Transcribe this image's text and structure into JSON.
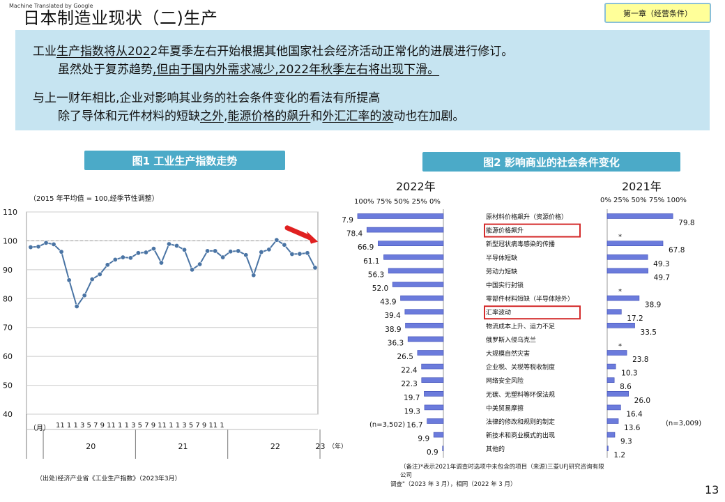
{
  "watermark": "Machine Translated by Google",
  "page_title": "日本制造业现状（二)生产",
  "chapter_label": "第一章（经营条件）",
  "summary": {
    "line1_a": "工业",
    "line1_b": "生产指数将从202",
    "line1_c": "2年夏季左右开始根据其他国家社会经济活动正常化的进展进行修订。",
    "line2_a": "虽然处于复苏趋势",
    "line2_b": ",但由于国内外需求减少,2022年秋季左右将出现下滑。",
    "line3": "与上一财年相比,企业对影响其业务的社会条件变化的看法有所提高",
    "line4_a": "除了导体和元件材料的短缺",
    "line4_b": "之外",
    "line4_c": ",",
    "line4_d": "能源价格的飙升",
    "line4_e": "和",
    "line4_f": "外汇汇率的波",
    "line4_g": "动也在加剧。"
  },
  "fig1": {
    "header": "图1 工业生产指数走势",
    "unit_note": "（2015 年平均值 = 100,经季节性调整）",
    "month_label": "（月）",
    "month_ticks": "11 1 1 3 5 7 9 11 1 1 3 5 7 9 11 1 1 3 5 7 9 11 1",
    "year_unit": "（年）",
    "source": "（出处)经济产业省《工业生产指数》（2023年3月）"
  },
  "fig2": {
    "header": "图2 影响商业的社会条件变化",
    "left_year": "2022年",
    "right_year": "2021年",
    "left_axis": "100% 75% 50% 25% 0%",
    "right_axis": "0% 25% 50% 75% 100%",
    "left_n": "(n=3,502)",
    "right_n": "(n=3,009)",
    "note_line1": "（备注)*表示2021年调查时选项中未包含的项目（来源)三菱UFJ研究咨询有限",
    "note_line2": "公司",
    "note_line3": "调查\"（2023 年 3 月），相同（2022 年 3 月）",
    "asterisk": "*"
  },
  "page_number": "13",
  "colors": {
    "line": "#4a74a4",
    "bar": "#6b7bdc",
    "header": "#4baac8",
    "summary_bg": "#c6e4f1",
    "highlight": "#d42a2a"
  },
  "chart_data": [
    {
      "type": "line",
      "title": "图1 工业生产指数走势",
      "ylabel": "（2015 年平均值 = 100,经季节性调整）",
      "ylim": [
        40,
        110
      ],
      "yticks": [
        40,
        50,
        60,
        70,
        80,
        90,
        100,
        110
      ],
      "year_labels": [
        "20",
        "21",
        "22",
        "23"
      ],
      "year_start_index": [
        2,
        14,
        26,
        38
      ],
      "values": [
        97.8,
        98.0,
        99.3,
        98.8,
        96.2,
        86.4,
        77.3,
        81.1,
        86.7,
        88.4,
        91.7,
        93.5,
        94.3,
        94.1,
        95.8,
        96.0,
        97.3,
        92.4,
        98.9,
        98.3,
        96.9,
        90.0,
        91.9,
        96.5,
        96.5,
        94.3,
        96.3,
        96.5,
        95.1,
        88.1,
        96.1,
        97.0,
        100.3,
        98.6,
        95.4,
        95.5,
        95.8,
        90.7
      ],
      "grid": true
    },
    {
      "type": "bar",
      "title": "图2 影响商业的社会条件变化",
      "categories": [
        "原材料价格飙升（资源价格）",
        "能源价格飙升",
        "新型冠状病毒感染的传播",
        "半导体短缺",
        "劳动力短缺",
        "中国实行封锁",
        "零部件材料短缺（半导体除外）",
        "汇率波动",
        "物流成本上升、运力不足",
        "俄罗斯入侵乌克兰",
        "大规模自然灾害",
        "企业税、关税等税收制度",
        "网络安全风险",
        "无碳、无塑料等环保法规",
        "中美贸易摩擦",
        "法律的修改和规则的制定",
        "新技术和商业模式的出现",
        "其他的"
      ],
      "series": [
        {
          "name": "2022年",
          "values": [
            87.9,
            78.4,
            66.9,
            61.1,
            56.3,
            52.0,
            43.9,
            39.4,
            38.9,
            36.3,
            26.5,
            22.4,
            22.3,
            19.7,
            19.3,
            16.7,
            9.9,
            0.9
          ]
        },
        {
          "name": "2021年",
          "values": [
            79.8,
            null,
            67.8,
            49.3,
            49.7,
            null,
            38.9,
            17.2,
            33.5,
            null,
            23.8,
            10.3,
            8.6,
            26.0,
            16.4,
            13.6,
            9.3,
            1.2
          ]
        }
      ],
      "highlighted": [
        "能源价格飙升",
        "汇率波动"
      ],
      "xlim": [
        0,
        100
      ]
    }
  ]
}
